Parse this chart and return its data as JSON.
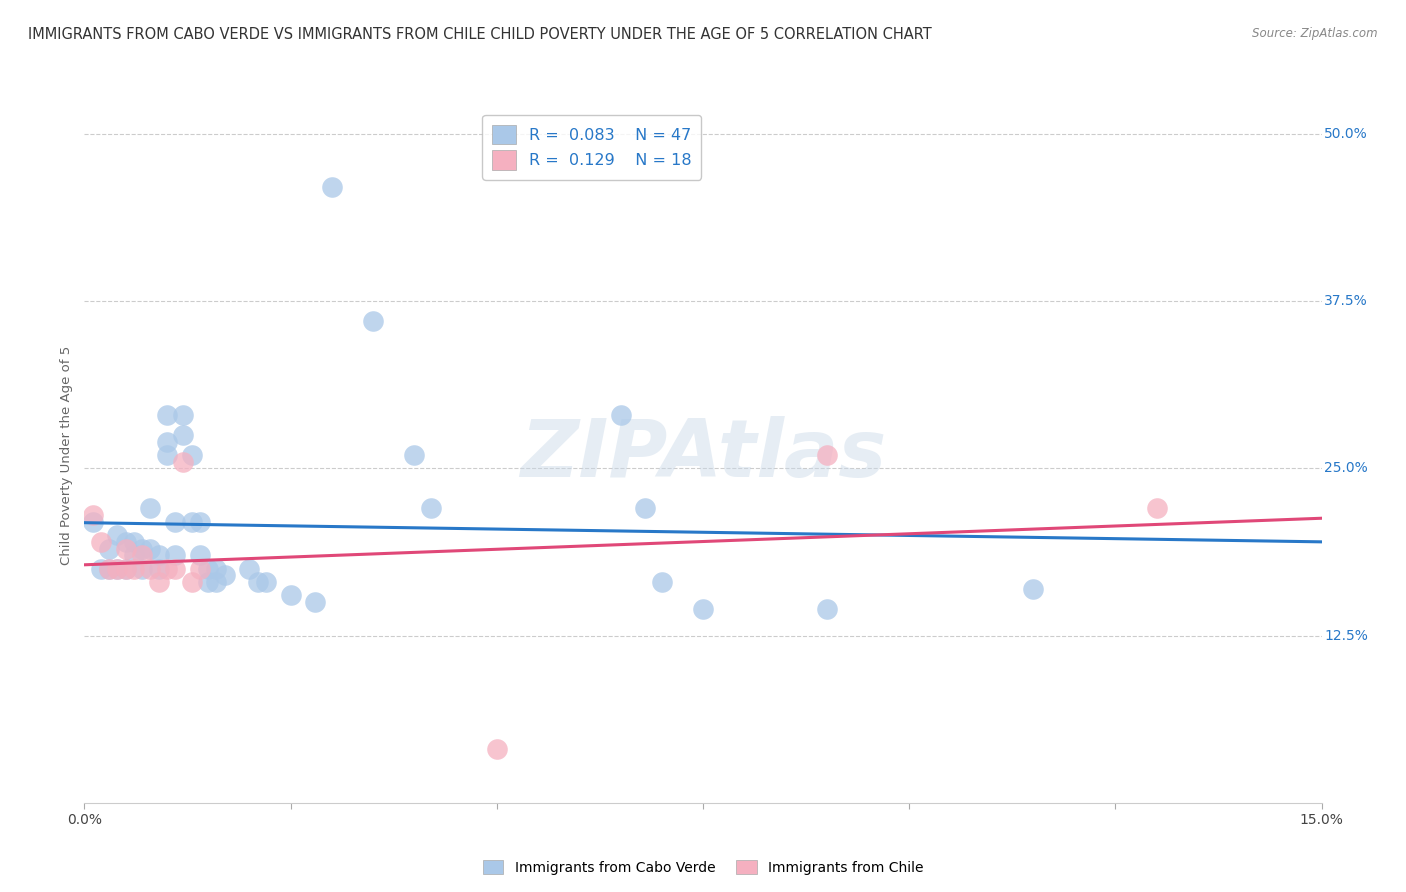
{
  "title": "IMMIGRANTS FROM CABO VERDE VS IMMIGRANTS FROM CHILE CHILD POVERTY UNDER THE AGE OF 5 CORRELATION CHART",
  "source": "Source: ZipAtlas.com",
  "ylabel": "Child Poverty Under the Age of 5",
  "xlim": [
    0.0,
    0.15
  ],
  "ylim": [
    0.0,
    0.52
  ],
  "ytick_right_labels": [
    "50.0%",
    "37.5%",
    "25.0%",
    "12.5%"
  ],
  "ytick_right_values": [
    0.5,
    0.375,
    0.25,
    0.125
  ],
  "cabo_verde_R": 0.083,
  "cabo_verde_N": 47,
  "chile_R": 0.129,
  "chile_N": 18,
  "cabo_verde_color": "#aac8e8",
  "chile_color": "#f5b0c0",
  "cabo_verde_line_color": "#2878c8",
  "chile_line_color": "#e04878",
  "cabo_verde_points": [
    [
      0.001,
      0.21
    ],
    [
      0.002,
      0.175
    ],
    [
      0.003,
      0.19
    ],
    [
      0.003,
      0.175
    ],
    [
      0.004,
      0.2
    ],
    [
      0.004,
      0.175
    ],
    [
      0.005,
      0.195
    ],
    [
      0.005,
      0.175
    ],
    [
      0.006,
      0.195
    ],
    [
      0.006,
      0.185
    ],
    [
      0.007,
      0.19
    ],
    [
      0.007,
      0.175
    ],
    [
      0.008,
      0.22
    ],
    [
      0.008,
      0.19
    ],
    [
      0.009,
      0.185
    ],
    [
      0.009,
      0.175
    ],
    [
      0.01,
      0.29
    ],
    [
      0.01,
      0.27
    ],
    [
      0.01,
      0.26
    ],
    [
      0.011,
      0.21
    ],
    [
      0.011,
      0.185
    ],
    [
      0.012,
      0.29
    ],
    [
      0.012,
      0.275
    ],
    [
      0.013,
      0.26
    ],
    [
      0.013,
      0.21
    ],
    [
      0.014,
      0.21
    ],
    [
      0.014,
      0.185
    ],
    [
      0.015,
      0.175
    ],
    [
      0.015,
      0.165
    ],
    [
      0.016,
      0.175
    ],
    [
      0.016,
      0.165
    ],
    [
      0.017,
      0.17
    ],
    [
      0.02,
      0.175
    ],
    [
      0.021,
      0.165
    ],
    [
      0.022,
      0.165
    ],
    [
      0.025,
      0.155
    ],
    [
      0.028,
      0.15
    ],
    [
      0.03,
      0.46
    ],
    [
      0.035,
      0.36
    ],
    [
      0.04,
      0.26
    ],
    [
      0.042,
      0.22
    ],
    [
      0.065,
      0.29
    ],
    [
      0.068,
      0.22
    ],
    [
      0.07,
      0.165
    ],
    [
      0.075,
      0.145
    ],
    [
      0.09,
      0.145
    ],
    [
      0.115,
      0.16
    ]
  ],
  "chile_points": [
    [
      0.001,
      0.215
    ],
    [
      0.002,
      0.195
    ],
    [
      0.003,
      0.175
    ],
    [
      0.004,
      0.175
    ],
    [
      0.005,
      0.19
    ],
    [
      0.005,
      0.175
    ],
    [
      0.006,
      0.175
    ],
    [
      0.007,
      0.185
    ],
    [
      0.008,
      0.175
    ],
    [
      0.009,
      0.165
    ],
    [
      0.01,
      0.175
    ],
    [
      0.011,
      0.175
    ],
    [
      0.012,
      0.255
    ],
    [
      0.013,
      0.165
    ],
    [
      0.014,
      0.175
    ],
    [
      0.05,
      0.04
    ],
    [
      0.09,
      0.26
    ],
    [
      0.13,
      0.22
    ]
  ],
  "grid_color": "#cccccc",
  "background_color": "#ffffff",
  "title_fontsize": 10.5,
  "axis_label_fontsize": 9.5,
  "tick_fontsize": 10,
  "legend_fontsize": 11.5
}
